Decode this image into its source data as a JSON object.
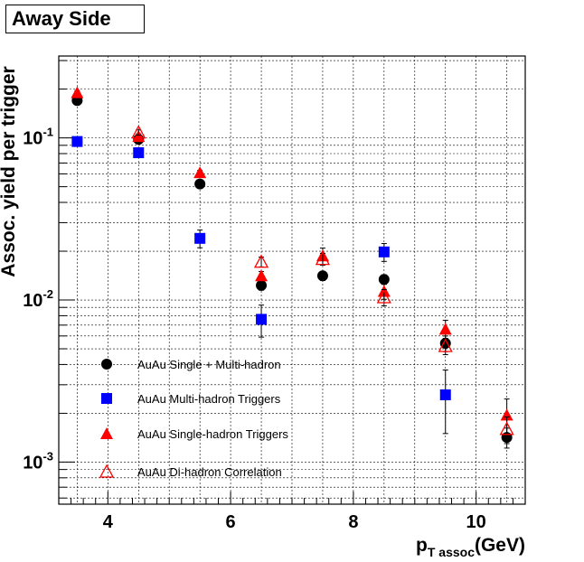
{
  "chart_data": {
    "type": "scatter",
    "title": "Away Side",
    "xlabel_main": "p",
    "xlabel_sub": "T assoc",
    "xlabel_unit": "(GeV)",
    "ylabel": "Assoc. yield per trigger",
    "xlim": [
      3.2,
      10.8
    ],
    "ylim": [
      0.00055,
      0.32
    ],
    "yscale": "log",
    "grid": true,
    "x_ticks": [
      4,
      6,
      8,
      10
    ],
    "y_ticks": [
      {
        "value": 0.001,
        "base": "10",
        "exp": "-3"
      },
      {
        "value": 0.01,
        "base": "10",
        "exp": "-2"
      },
      {
        "value": 0.1,
        "base": "10",
        "exp": "-1"
      }
    ],
    "legend_position": "bottom-left",
    "series": [
      {
        "name": "AuAu Single + Multi-hadron",
        "marker": "circle",
        "color": "#000000",
        "x": [
          3.5,
          4.5,
          5.5,
          6.5,
          7.5,
          8.5,
          9.5,
          10.5
        ],
        "y": [
          0.17,
          0.098,
          0.052,
          0.0123,
          0.0141,
          0.0134,
          0.0054,
          0.00142
        ],
        "err": [
          0.006,
          0.004,
          0.002,
          0.0008,
          0.0009,
          0.0009,
          0.0006,
          0.0002
        ]
      },
      {
        "name": "AuAu Multi-hadron Triggers",
        "marker": "square",
        "color": "#0000ff",
        "x": [
          3.5,
          4.5,
          5.5,
          6.5,
          8.5,
          9.5
        ],
        "y": [
          0.095,
          0.081,
          0.024,
          0.0076,
          0.0198,
          0.0026
        ],
        "err": [
          0.003,
          0.003,
          0.003,
          0.0017,
          0.0025,
          0.0011
        ]
      },
      {
        "name": "AuAu Single-hadron Triggers",
        "marker": "triangle",
        "color": "#ff0000",
        "x": [
          3.5,
          4.5,
          5.5,
          6.5,
          7.5,
          8.5,
          9.5,
          10.5
        ],
        "y": [
          0.19,
          0.102,
          0.061,
          0.0141,
          0.0187,
          0.0113,
          0.0066,
          0.00195
        ],
        "err": [
          0.006,
          0.004,
          0.002,
          0.0009,
          0.0022,
          0.0012,
          0.0009,
          0.0005
        ]
      },
      {
        "name": "AuAu Di-hadron Correlation",
        "marker": "triangle-open",
        "color": "#ff0000",
        "x": [
          4.5,
          6.5,
          7.5,
          8.5,
          9.5,
          10.5
        ],
        "y": [
          0.108,
          0.0172,
          0.0179,
          0.0104,
          0.0052,
          0.0016
        ],
        "err": [
          0.004,
          0.0012,
          0.0015,
          0.0012,
          0.0006,
          0.0003
        ]
      }
    ]
  }
}
